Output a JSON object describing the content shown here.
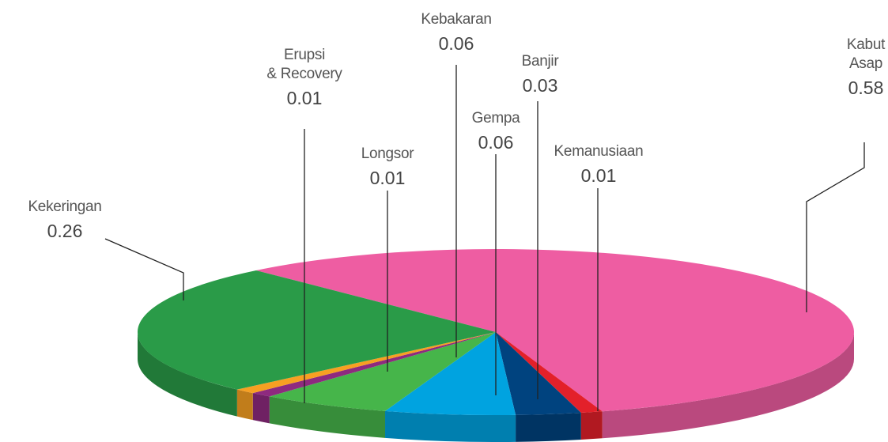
{
  "chart_data": {
    "type": "pie3d",
    "categories": [
      "Kabut Asap",
      "Kemanusiaan",
      "Banjir",
      "Gempa",
      "Kebakaran",
      "Longsor",
      "Erupsi\n& Recovery",
      "Kekeringan"
    ],
    "values": [
      0.58,
      0.01,
      0.03,
      0.06,
      0.06,
      0.01,
      0.01,
      0.26
    ],
    "colors": [
      "#ee5da2",
      "#e3202a",
      "#00437f",
      "#00a3e0",
      "#46b54a",
      "#8e2a7f",
      "#f7a022",
      "#2a9b48"
    ]
  }
}
